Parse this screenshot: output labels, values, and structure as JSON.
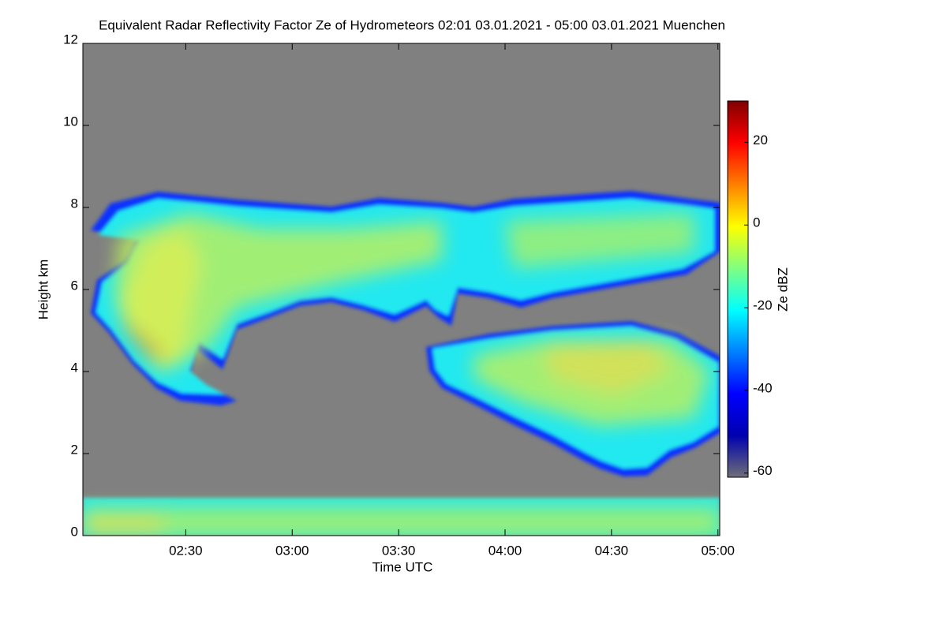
{
  "chart_data": {
    "type": "heatmap",
    "title": "Equivalent Radar Reflectivity Factor Ze of Hydrometeors   02:01 03.01.2021 - 05:00 03.01.2021 Muenchen",
    "x_label": "Time UTC",
    "y_label": "Height km",
    "xlim": [
      121,
      300.5
    ],
    "xticks": [
      {
        "value": 150,
        "label": "02:30"
      },
      {
        "value": 180,
        "label": "03:00"
      },
      {
        "value": 210,
        "label": "03:30"
      },
      {
        "value": 240,
        "label": "04:00"
      },
      {
        "value": 270,
        "label": "04:30"
      },
      {
        "value": 300,
        "label": "05:00"
      }
    ],
    "ylim": [
      0,
      12
    ],
    "yticks": [
      0,
      2,
      4,
      6,
      8,
      10,
      12
    ],
    "colorbar": {
      "label": "Ze dBZ",
      "lim": [
        -61,
        30
      ],
      "ticks": [
        -60,
        -40,
        -20,
        0,
        20
      ],
      "colormap": [
        "#6e6e78",
        "#0000b0",
        "#0000ff",
        "#0080ff",
        "#00ffff",
        "#80ff80",
        "#ffff00",
        "#ff8000",
        "#ff0000",
        "#800000"
      ]
    },
    "background": "#808080"
  }
}
